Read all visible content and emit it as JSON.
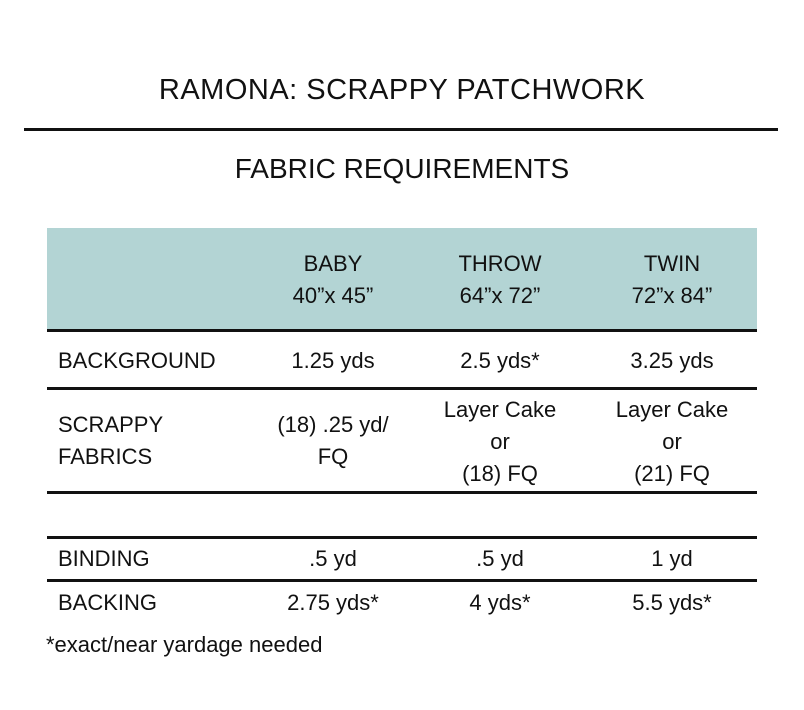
{
  "title": "RAMONA: SCRAPPY PATCHWORK",
  "subtitle": "FABRIC REQUIREMENTS",
  "header_color": "#b3d4d4",
  "columns": [
    {
      "name": "BABY",
      "size": "40”x 45”"
    },
    {
      "name": "THROW",
      "size": "64”x 72”"
    },
    {
      "name": "TWIN",
      "size": "72”x 84”"
    }
  ],
  "rows": [
    {
      "label": "BACKGROUND",
      "values": [
        "1.25 yds",
        "2.5 yds*",
        "3.25 yds"
      ]
    },
    {
      "label_lines": [
        "SCRAPPY",
        "FABRICS"
      ],
      "values": [
        [
          "(18) .25 yd/",
          "FQ"
        ],
        [
          "Layer Cake",
          "or",
          "(18) FQ"
        ],
        [
          "Layer Cake",
          "or",
          "(21) FQ"
        ]
      ]
    },
    {
      "label": "BINDING",
      "values": [
        ".5 yd",
        ".5 yd",
        "1 yd"
      ]
    },
    {
      "label": "BACKING",
      "values": [
        "2.75 yds*",
        "4 yds*",
        "5.5 yds*"
      ]
    }
  ],
  "footnote": "*exact/near yardage needed"
}
